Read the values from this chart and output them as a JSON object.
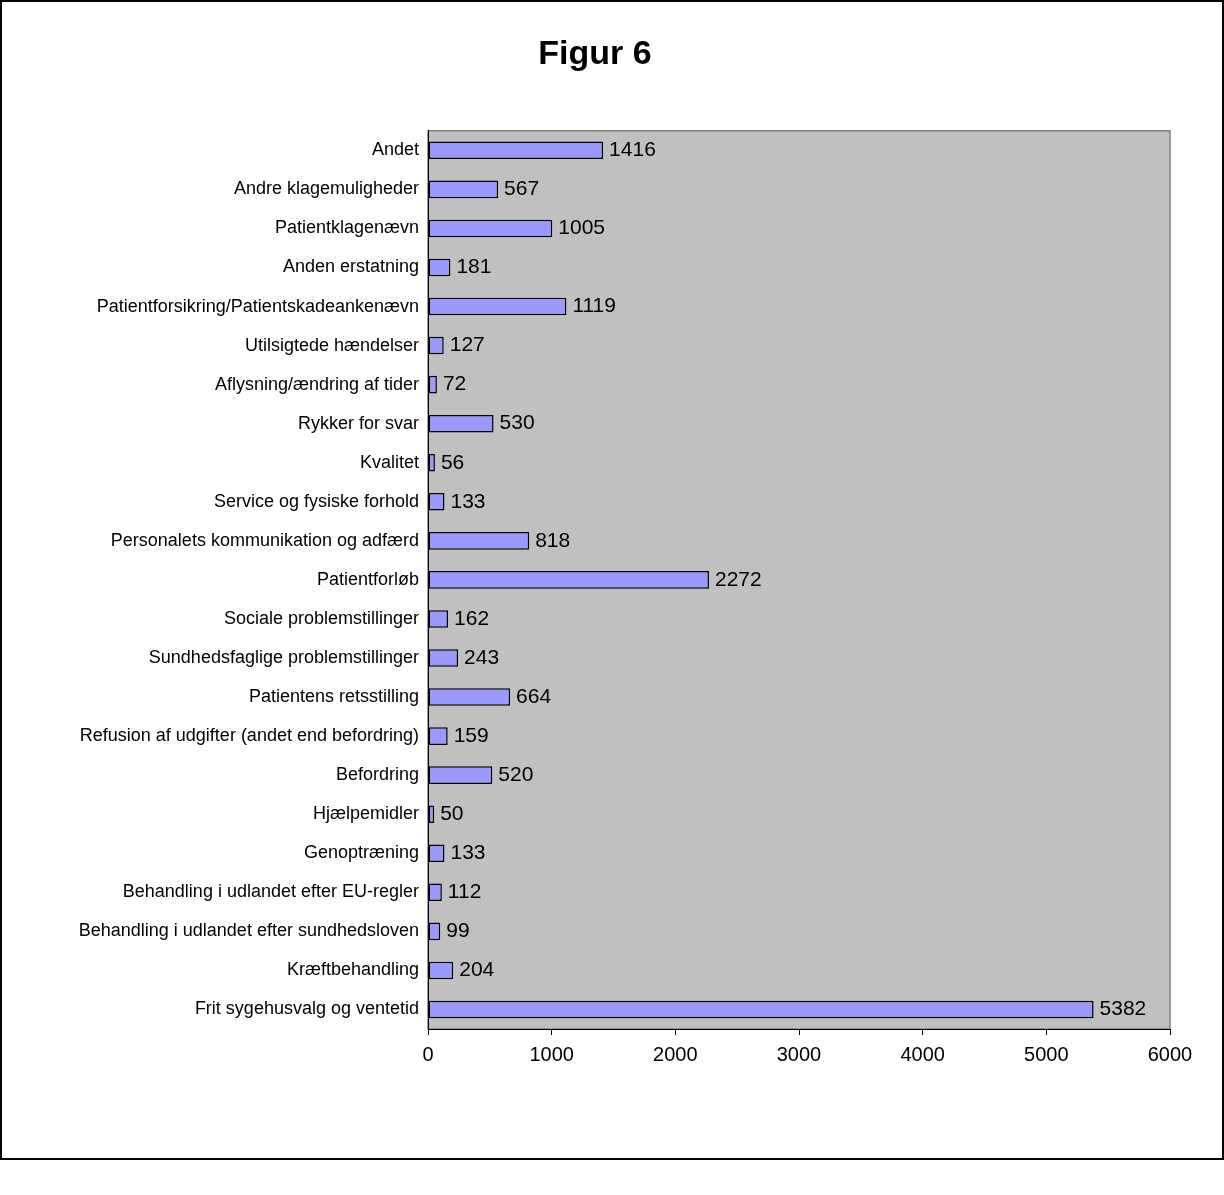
{
  "chart_data": {
    "type": "bar",
    "orientation": "horizontal",
    "title": "Figur 6",
    "categories": [
      "Andet",
      "Andre klagemuligheder",
      "Patientklagenævn",
      "Anden erstatning",
      "Patientforsikring/Patientskadeankenævn",
      "Utilsigtede hændelser",
      "Aflysning/ændring af tider",
      "Rykker for svar",
      "Kvalitet",
      "Service og fysiske forhold",
      "Personalets kommunikation og adfærd",
      "Patientforløb",
      "Sociale problemstillinger",
      "Sundhedsfaglige problemstillinger",
      "Patientens retsstilling",
      "Refusion af udgifter (andet end befordring)",
      "Befordring",
      "Hjælpemidler",
      "Genoptræning",
      "Behandling i udlandet efter EU-regler",
      "Behandling i udlandet efter sundhedsloven",
      "Kræftbehandling",
      "Frit sygehusvalg og ventetid"
    ],
    "values": [
      1416,
      567,
      1005,
      181,
      1119,
      127,
      72,
      530,
      56,
      133,
      818,
      2272,
      162,
      243,
      664,
      159,
      520,
      50,
      133,
      112,
      99,
      204,
      5382
    ],
    "color": "#9999ff",
    "xlim": [
      0,
      6000
    ],
    "xticks": [
      0,
      1000,
      2000,
      3000,
      4000,
      5000,
      6000
    ],
    "data_labels": true
  }
}
